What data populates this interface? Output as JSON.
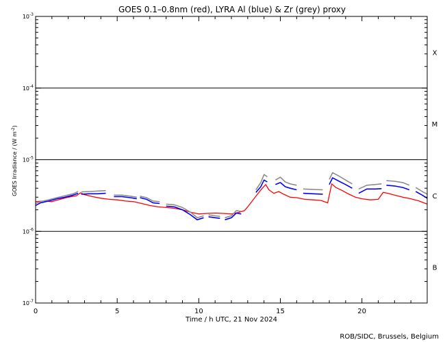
{
  "chart_data": {
    "type": "line",
    "title": "GOES 0.1–0.8nm (red), LYRA Al (blue) & Zr (grey) proxy",
    "xlabel": "Time / h UTC, 21 Nov 2024",
    "ylabel": "GOES Irradiance / (W m",
    "ylabel_sup": "-2",
    "ylabel_end": ")",
    "xlim": [
      0,
      24
    ],
    "ylim": [
      1e-07,
      0.001
    ],
    "yscale": "log",
    "x_ticks": [
      {
        "v": 0,
        "label": "0"
      },
      {
        "v": 5,
        "label": "5"
      },
      {
        "v": 10,
        "label": "10"
      },
      {
        "v": 15,
        "label": "15"
      },
      {
        "v": 20,
        "label": "20"
      }
    ],
    "y_ticks": [
      {
        "v": 0.001,
        "base": "10",
        "exp": "-3"
      },
      {
        "v": 0.0001,
        "base": "10",
        "exp": "-4"
      },
      {
        "v": 1e-05,
        "base": "10",
        "exp": "-5"
      },
      {
        "v": 1e-06,
        "base": "10",
        "exp": "-6"
      },
      {
        "v": 1e-07,
        "base": "10",
        "exp": "-7"
      }
    ],
    "flare_class_lines": [
      0.0001,
      1e-05,
      1e-06
    ],
    "flare_classes": [
      {
        "label": "X",
        "v": 0.000316
      },
      {
        "label": "M",
        "v": 3.16e-05
      },
      {
        "label": "C",
        "v": 3.16e-06
      },
      {
        "label": "B",
        "v": 3.16e-07
      }
    ],
    "series": [
      {
        "color": "#ff0000",
        "segments": [
          [
            [
              0.0,
              2.6e-06
            ],
            [
              0.5,
              2.65e-06
            ],
            [
              1.0,
              2.6e-06
            ],
            [
              1.5,
              2.8e-06
            ],
            [
              2.0,
              3e-06
            ],
            [
              2.5,
              3.15e-06
            ],
            [
              2.75,
              3.45e-06
            ],
            [
              3.0,
              3.25e-06
            ],
            [
              3.5,
              3.05e-06
            ],
            [
              4.0,
              2.9e-06
            ],
            [
              4.5,
              2.8e-06
            ],
            [
              5.0,
              2.75e-06
            ],
            [
              5.5,
              2.65e-06
            ],
            [
              6.0,
              2.6e-06
            ],
            [
              6.5,
              2.45e-06
            ],
            [
              7.0,
              2.3e-06
            ],
            [
              7.5,
              2.2e-06
            ],
            [
              8.0,
              2.15e-06
            ],
            [
              8.5,
              2.1e-06
            ],
            [
              9.0,
              2e-06
            ],
            [
              9.5,
              1.85e-06
            ],
            [
              10.0,
              1.75e-06
            ],
            [
              10.5,
              1.78e-06
            ],
            [
              11.0,
              1.8e-06
            ],
            [
              11.5,
              1.78e-06
            ],
            [
              12.0,
              1.75e-06
            ],
            [
              12.5,
              1.85e-06
            ],
            [
              12.8,
              1.95e-06
            ],
            [
              13.0,
              2.2e-06
            ],
            [
              13.3,
              2.7e-06
            ],
            [
              13.6,
              3.3e-06
            ],
            [
              13.85,
              3.9e-06
            ],
            [
              14.1,
              4.5e-06
            ],
            [
              14.3,
              3.8e-06
            ],
            [
              14.6,
              3.4e-06
            ],
            [
              14.9,
              3.6e-06
            ],
            [
              15.2,
              3.3e-06
            ],
            [
              15.6,
              3e-06
            ],
            [
              16.0,
              2.95e-06
            ],
            [
              16.5,
              2.8e-06
            ],
            [
              17.0,
              2.75e-06
            ],
            [
              17.5,
              2.7e-06
            ],
            [
              17.9,
              2.5e-06
            ],
            [
              18.15,
              4.6e-06
            ],
            [
              18.4,
              4.1e-06
            ],
            [
              18.8,
              3.7e-06
            ],
            [
              19.2,
              3.3e-06
            ],
            [
              19.6,
              3e-06
            ],
            [
              20.0,
              2.85e-06
            ],
            [
              20.5,
              2.75e-06
            ],
            [
              21.0,
              2.8e-06
            ],
            [
              21.3,
              3.5e-06
            ],
            [
              21.6,
              3.4e-06
            ],
            [
              22.0,
              3.2e-06
            ],
            [
              22.5,
              3e-06
            ],
            [
              23.0,
              2.85e-06
            ],
            [
              23.5,
              2.65e-06
            ],
            [
              24.0,
              2.4e-06
            ]
          ]
        ]
      },
      {
        "color": "#0000ff",
        "segments": [
          [
            [
              0.0,
              2.3e-06
            ],
            [
              0.3,
              2.5e-06
            ],
            [
              0.8,
              2.65e-06
            ],
            [
              1.3,
              2.85e-06
            ],
            [
              1.8,
              3e-06
            ],
            [
              2.3,
              3.2e-06
            ],
            [
              2.6,
              3.4e-06
            ]
          ],
          [
            [
              2.8,
              3.3e-06
            ],
            [
              3.3,
              3.35e-06
            ],
            [
              3.8,
              3.35e-06
            ],
            [
              4.3,
              3.4e-06
            ]
          ],
          [
            [
              4.8,
              3.05e-06
            ],
            [
              5.3,
              3.05e-06
            ],
            [
              5.8,
              2.95e-06
            ],
            [
              6.2,
              2.85e-06
            ]
          ],
          [
            [
              6.4,
              2.95e-06
            ],
            [
              6.8,
              2.8e-06
            ],
            [
              7.2,
              2.5e-06
            ],
            [
              7.6,
              2.45e-06
            ]
          ],
          [
            [
              8.0,
              2.25e-06
            ],
            [
              8.5,
              2.2e-06
            ],
            [
              9.0,
              2e-06
            ],
            [
              9.5,
              1.7e-06
            ],
            [
              9.9,
              1.45e-06
            ],
            [
              10.3,
              1.55e-06
            ]
          ],
          [
            [
              10.6,
              1.6e-06
            ],
            [
              11.0,
              1.55e-06
            ],
            [
              11.3,
              1.52e-06
            ]
          ],
          [
            [
              11.6,
              1.45e-06
            ],
            [
              12.0,
              1.55e-06
            ],
            [
              12.3,
              1.8e-06
            ],
            [
              12.6,
              1.75e-06
            ]
          ],
          [
            [
              13.5,
              3.5e-06
            ],
            [
              13.8,
              4.2e-06
            ],
            [
              14.0,
              5.2e-06
            ],
            [
              14.2,
              4.9e-06
            ]
          ],
          [
            [
              14.7,
              4.5e-06
            ],
            [
              15.0,
              4.8e-06
            ],
            [
              15.3,
              4.2e-06
            ],
            [
              15.6,
              4e-06
            ],
            [
              16.0,
              3.8e-06
            ]
          ],
          [
            [
              16.4,
              3.4e-06
            ],
            [
              17.0,
              3.35e-06
            ],
            [
              17.6,
              3.3e-06
            ]
          ],
          [
            [
              18.0,
              4.5e-06
            ],
            [
              18.2,
              5.6e-06
            ],
            [
              18.6,
              5e-06
            ],
            [
              19.0,
              4.5e-06
            ],
            [
              19.4,
              4e-06
            ]
          ],
          [
            [
              19.8,
              3.4e-06
            ],
            [
              20.3,
              3.9e-06
            ],
            [
              20.8,
              3.9e-06
            ],
            [
              21.2,
              3.95e-06
            ]
          ],
          [
            [
              21.5,
              4.4e-06
            ],
            [
              22.0,
              4.3e-06
            ],
            [
              22.5,
              4.1e-06
            ],
            [
              22.9,
              3.8e-06
            ]
          ],
          [
            [
              23.3,
              3.6e-06
            ],
            [
              23.7,
              3.2e-06
            ],
            [
              24.0,
              2.9e-06
            ]
          ]
        ]
      },
      {
        "color": "#8c8c8c",
        "segments": [
          [
            [
              0.0,
              2.45e-06
            ],
            [
              0.3,
              2.6e-06
            ],
            [
              0.8,
              2.75e-06
            ],
            [
              1.3,
              2.95e-06
            ],
            [
              1.8,
              3.15e-06
            ],
            [
              2.3,
              3.35e-06
            ],
            [
              2.6,
              3.6e-06
            ]
          ],
          [
            [
              2.8,
              3.55e-06
            ],
            [
              3.3,
              3.6e-06
            ],
            [
              3.8,
              3.65e-06
            ],
            [
              4.3,
              3.7e-06
            ]
          ],
          [
            [
              4.8,
              3.2e-06
            ],
            [
              5.3,
              3.2e-06
            ],
            [
              5.8,
              3.1e-06
            ],
            [
              6.2,
              3e-06
            ]
          ],
          [
            [
              6.4,
              3.1e-06
            ],
            [
              6.8,
              2.95e-06
            ],
            [
              7.2,
              2.65e-06
            ],
            [
              7.6,
              2.6e-06
            ]
          ],
          [
            [
              8.0,
              2.4e-06
            ],
            [
              8.5,
              2.35e-06
            ],
            [
              9.0,
              2.15e-06
            ],
            [
              9.5,
              1.85e-06
            ],
            [
              9.9,
              1.55e-06
            ],
            [
              10.3,
              1.65e-06
            ]
          ],
          [
            [
              10.6,
              1.7e-06
            ],
            [
              11.0,
              1.65e-06
            ],
            [
              11.3,
              1.62e-06
            ]
          ],
          [
            [
              11.6,
              1.55e-06
            ],
            [
              12.0,
              1.65e-06
            ],
            [
              12.3,
              1.95e-06
            ],
            [
              12.6,
              1.9e-06
            ]
          ],
          [
            [
              13.5,
              3.8e-06
            ],
            [
              13.8,
              4.8e-06
            ],
            [
              14.0,
              6.2e-06
            ],
            [
              14.2,
              5.8e-06
            ]
          ],
          [
            [
              14.7,
              5.2e-06
            ],
            [
              15.0,
              5.7e-06
            ],
            [
              15.3,
              4.9e-06
            ],
            [
              15.6,
              4.6e-06
            ],
            [
              16.0,
              4.4e-06
            ]
          ],
          [
            [
              16.4,
              3.9e-06
            ],
            [
              17.0,
              3.85e-06
            ],
            [
              17.6,
              3.8e-06
            ]
          ],
          [
            [
              18.0,
              5.3e-06
            ],
            [
              18.2,
              6.6e-06
            ],
            [
              18.6,
              5.9e-06
            ],
            [
              19.0,
              5.2e-06
            ],
            [
              19.4,
              4.6e-06
            ]
          ],
          [
            [
              19.8,
              3.9e-06
            ],
            [
              20.3,
              4.4e-06
            ],
            [
              20.8,
              4.5e-06
            ],
            [
              21.2,
              4.6e-06
            ]
          ],
          [
            [
              21.5,
              5.1e-06
            ],
            [
              22.0,
              5e-06
            ],
            [
              22.5,
              4.8e-06
            ],
            [
              22.9,
              4.4e-06
            ]
          ],
          [
            [
              23.3,
              4.1e-06
            ],
            [
              23.7,
              3.6e-06
            ],
            [
              24.0,
              3.3e-06
            ]
          ]
        ]
      }
    ]
  },
  "credit": "ROB/SIDC, Brussels, Belgium"
}
